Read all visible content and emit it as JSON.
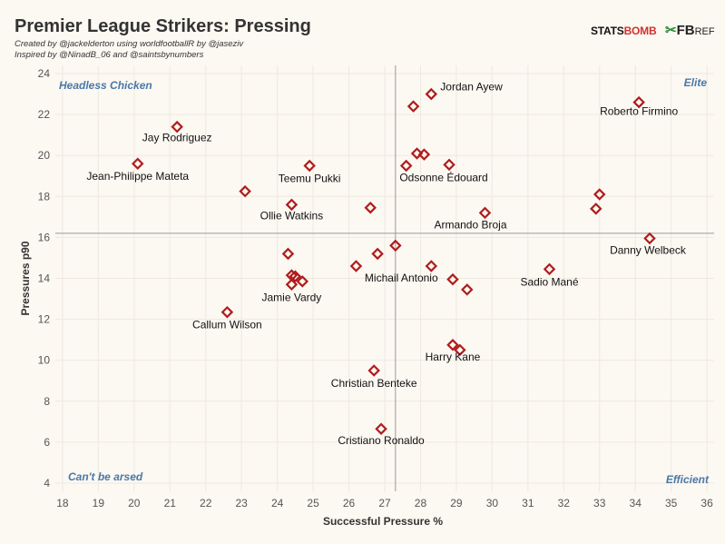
{
  "header": {
    "title": "Premier League Strikers: Pressing",
    "subtitle1": "Created by @jackelderton using worldfootballR by @jaseziv",
    "subtitle2": "Inspired by @NinadB_06 and @saintsbynumbers"
  },
  "logos": {
    "statsbomb_a": "STATS",
    "statsbomb_b": "BOMB",
    "fbref_mark": "✂",
    "fbref_fb": "FB",
    "fbref_ref": "REF"
  },
  "colors": {
    "marker": "#b01c1c",
    "quadrant": "#4a78a8",
    "refline": "#9a9a9a"
  },
  "chart_data": {
    "type": "scatter",
    "title": "Premier League Strikers: Pressing",
    "xlabel": "Successful Pressure %",
    "ylabel": "Pressures p90",
    "xlim": [
      17.8,
      36.2
    ],
    "ylim": [
      3.6,
      24.4
    ],
    "xticks": [
      18,
      19,
      20,
      21,
      22,
      23,
      24,
      25,
      26,
      27,
      28,
      29,
      30,
      31,
      32,
      33,
      34,
      35,
      36
    ],
    "yticks": [
      4,
      6,
      8,
      10,
      12,
      14,
      16,
      18,
      20,
      22,
      24
    ],
    "grid": true,
    "reference_lines": {
      "x": 27.3,
      "y": 16.2
    },
    "quadrants": {
      "top_left": "Headless Chicken",
      "top_right": "Elite",
      "bottom_left": "Can't be arsed",
      "bottom_right": "Efficient"
    },
    "points": [
      {
        "x": 28.3,
        "y": 23.0,
        "label": "Jordan Ayew"
      },
      {
        "x": 27.8,
        "y": 22.4,
        "label": ""
      },
      {
        "x": 34.1,
        "y": 22.6,
        "label": "Roberto Firmino"
      },
      {
        "x": 21.2,
        "y": 21.4,
        "label": "Jay Rodriguez"
      },
      {
        "x": 20.1,
        "y": 19.6,
        "label": "Jean-Philippe Mateta"
      },
      {
        "x": 24.9,
        "y": 19.5,
        "label": "Teemu Pukki"
      },
      {
        "x": 27.9,
        "y": 20.1,
        "label": ""
      },
      {
        "x": 28.1,
        "y": 20.05,
        "label": ""
      },
      {
        "x": 27.6,
        "y": 19.5,
        "label": ""
      },
      {
        "x": 28.8,
        "y": 19.55,
        "label": "Odsonne Édouard"
      },
      {
        "x": 23.1,
        "y": 18.25,
        "label": ""
      },
      {
        "x": 24.4,
        "y": 17.6,
        "label": "Ollie Watkins"
      },
      {
        "x": 26.6,
        "y": 17.45,
        "label": ""
      },
      {
        "x": 29.8,
        "y": 17.2,
        "label": "Armando Broja"
      },
      {
        "x": 33.0,
        "y": 18.1,
        "label": ""
      },
      {
        "x": 32.9,
        "y": 17.4,
        "label": ""
      },
      {
        "x": 34.4,
        "y": 15.95,
        "label": "Danny Welbeck"
      },
      {
        "x": 24.3,
        "y": 15.2,
        "label": ""
      },
      {
        "x": 26.8,
        "y": 15.2,
        "label": ""
      },
      {
        "x": 27.3,
        "y": 15.6,
        "label": ""
      },
      {
        "x": 26.2,
        "y": 14.6,
        "label": ""
      },
      {
        "x": 28.3,
        "y": 14.6,
        "label": "Michail Antonio"
      },
      {
        "x": 31.6,
        "y": 14.45,
        "label": "Sadio Mané"
      },
      {
        "x": 24.4,
        "y": 14.15,
        "label": ""
      },
      {
        "x": 24.5,
        "y": 14.1,
        "label": ""
      },
      {
        "x": 24.7,
        "y": 13.85,
        "label": ""
      },
      {
        "x": 24.4,
        "y": 13.7,
        "label": "Jamie Vardy"
      },
      {
        "x": 28.9,
        "y": 13.95,
        "label": ""
      },
      {
        "x": 29.3,
        "y": 13.45,
        "label": ""
      },
      {
        "x": 22.6,
        "y": 12.35,
        "label": "Callum Wilson"
      },
      {
        "x": 28.9,
        "y": 10.75,
        "label": "Harry Kane"
      },
      {
        "x": 29.1,
        "y": 10.5,
        "label": ""
      },
      {
        "x": 26.7,
        "y": 9.5,
        "label": "Christian Benteke"
      },
      {
        "x": 26.9,
        "y": 6.65,
        "label": "Cristiano Ronaldo"
      }
    ]
  }
}
